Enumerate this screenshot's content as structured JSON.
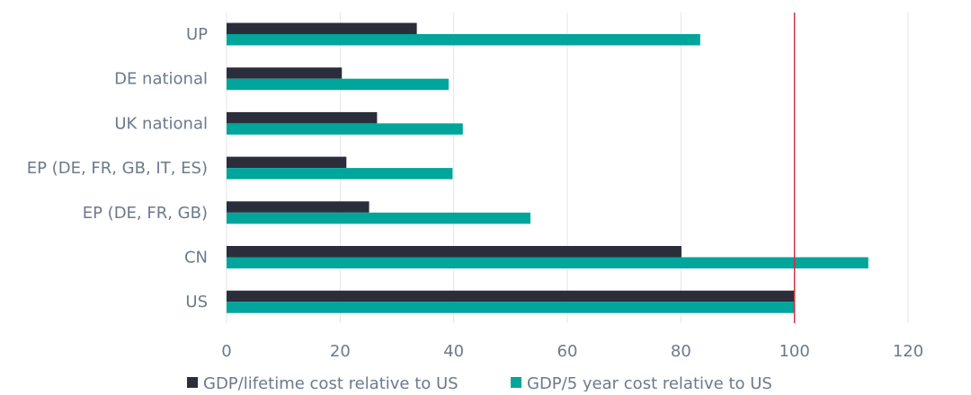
{
  "chart_data": {
    "type": "bar",
    "orientation": "horizontal",
    "categories": [
      "UP",
      "DE national",
      "UK national",
      "EP (DE, FR, GB, IT, ES)",
      "EP (DE, FR, GB)",
      "CN",
      "US"
    ],
    "series": [
      {
        "name": "GDP/lifetime cost relative to US",
        "color": "#2b2e3a",
        "values": [
          33.5,
          20.3,
          26.5,
          21.1,
          25.1,
          80.1,
          100
        ]
      },
      {
        "name": "GDP/5 year cost relative to US",
        "color": "#00a59b",
        "values": [
          83.4,
          39.1,
          41.6,
          39.8,
          53.5,
          113.0,
          100
        ]
      }
    ],
    "xlim": [
      0,
      120
    ],
    "xticks": [
      0,
      20,
      40,
      60,
      80,
      100,
      120
    ],
    "reference_line": {
      "value": 100,
      "color": "#cc3344"
    },
    "grid": true,
    "legend_position": "bottom"
  }
}
